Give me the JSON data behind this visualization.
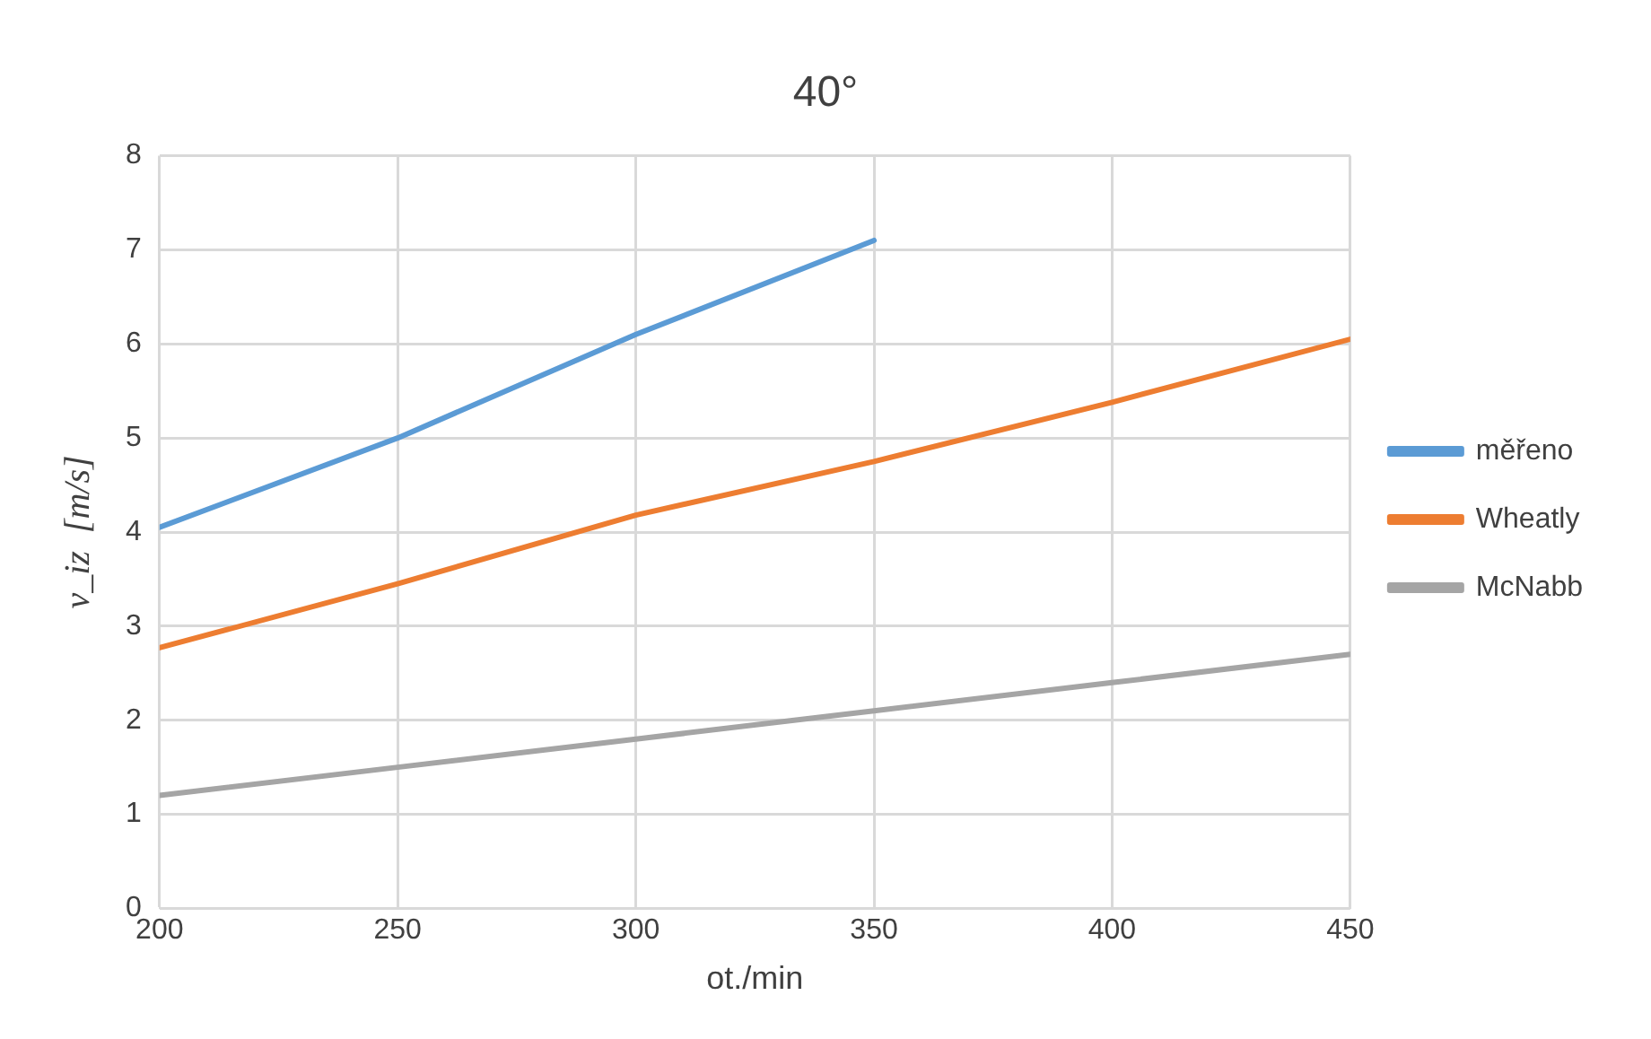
{
  "chart_data": {
    "type": "line",
    "title": "40°",
    "xlabel": "ot./min",
    "ylabel": "v_iz  [m/s]",
    "xlim": [
      200,
      450
    ],
    "xticks": [
      200,
      250,
      300,
      350,
      400,
      450
    ],
    "ylim": [
      0,
      8
    ],
    "yticks": [
      0,
      1,
      2,
      3,
      4,
      5,
      6,
      7,
      8
    ],
    "grid": true,
    "legend": "right",
    "marker": "none",
    "series": [
      {
        "name": "měřeno",
        "color": "#5b9bd5",
        "x": [
          200,
          250,
          300,
          350
        ],
        "values": [
          4.05,
          5.0,
          6.1,
          7.1
        ]
      },
      {
        "name": "Wheatly",
        "color": "#ed7d31",
        "x": [
          200,
          250,
          300,
          350,
          400,
          450
        ],
        "values": [
          2.77,
          3.45,
          4.18,
          4.75,
          5.38,
          6.05
        ]
      },
      {
        "name": "McNabb",
        "color": "#a5a5a5",
        "x": [
          200,
          250,
          300,
          350,
          400,
          450
        ],
        "values": [
          1.2,
          1.5,
          1.8,
          2.1,
          2.4,
          2.7
        ]
      }
    ]
  }
}
